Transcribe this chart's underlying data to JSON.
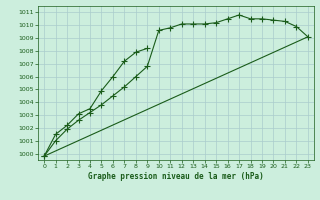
{
  "title": "Graphe pression niveau de la mer (hPa)",
  "bg_color": "#cceedd",
  "grid_color": "#aacccc",
  "line_color": "#1a5c1a",
  "xlim": [
    -0.5,
    23.5
  ],
  "ylim": [
    999.5,
    1011.5
  ],
  "yticks": [
    1000,
    1001,
    1002,
    1003,
    1004,
    1005,
    1006,
    1007,
    1008,
    1009,
    1010,
    1011
  ],
  "xticks": [
    0,
    1,
    2,
    3,
    4,
    5,
    6,
    7,
    8,
    9,
    10,
    11,
    12,
    13,
    14,
    15,
    16,
    17,
    18,
    19,
    20,
    21,
    22,
    23
  ],
  "series1": {
    "x": [
      0,
      1,
      2,
      3,
      4,
      5,
      6,
      7,
      8,
      9,
      10,
      11,
      12,
      13,
      14,
      15,
      16,
      17,
      18,
      19,
      20,
      21,
      22,
      23
    ],
    "y": [
      999.8,
      1001.0,
      1001.9,
      1002.6,
      1003.2,
      1003.8,
      1004.5,
      1005.2,
      1006.0,
      1006.8,
      1009.6,
      1009.8,
      1010.1,
      1010.1,
      1010.1,
      1010.2,
      1010.5,
      1010.8,
      1010.5,
      1010.5,
      1010.4,
      1010.3,
      1009.9,
      1009.1
    ],
    "marker": true
  },
  "series2": {
    "x": [
      0,
      1,
      2,
      3,
      4,
      5,
      6,
      7,
      8,
      9
    ],
    "y": [
      999.8,
      1001.5,
      1002.2,
      1003.1,
      1003.5,
      1004.9,
      1006.0,
      1007.2,
      1007.9,
      1008.2
    ],
    "marker": true
  },
  "series3": {
    "x": [
      0,
      23
    ],
    "y": [
      999.8,
      1009.1
    ],
    "marker": false
  }
}
